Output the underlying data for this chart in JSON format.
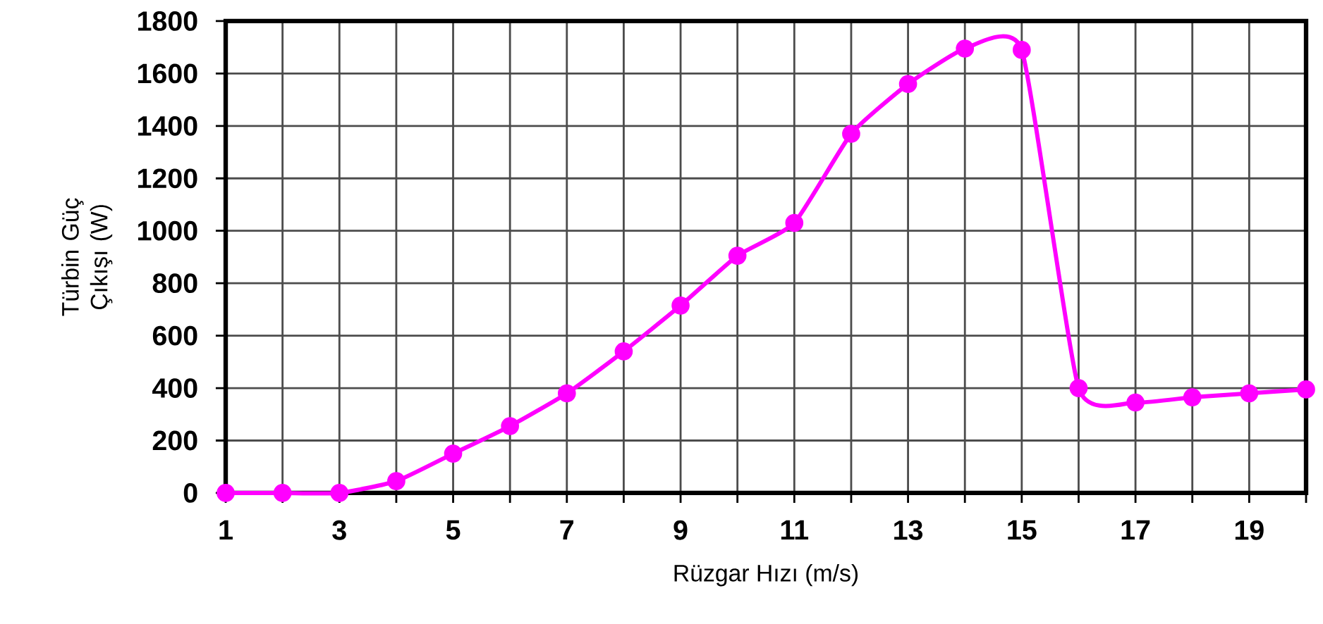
{
  "chart_data": {
    "type": "line",
    "xlabel": "Rüzgar Hızı (m/s)",
    "ylabel": "Türbin Güç Çıkışı (W)",
    "x": [
      1,
      2,
      3,
      4,
      5,
      6,
      7,
      8,
      9,
      10,
      11,
      12,
      13,
      14,
      15,
      16,
      17,
      18,
      19,
      20
    ],
    "series": [
      {
        "color": "#ff00ff",
        "values": [
          0,
          0,
          0,
          45,
          150,
          255,
          380,
          540,
          715,
          905,
          1030,
          1370,
          1560,
          1695,
          1690,
          400,
          345,
          365,
          380,
          395
        ]
      }
    ],
    "xlim": [
      1,
      20
    ],
    "ylim": [
      0,
      1800
    ],
    "xticks": [
      1,
      {
        "value": 2,
        "label": null
      },
      3,
      {
        "value": 4,
        "label": null
      },
      5,
      {
        "value": 6,
        "label": null
      },
      7,
      {
        "value": 8,
        "label": null
      },
      9,
      {
        "value": 10,
        "label": null
      },
      11,
      {
        "value": 12,
        "label": null
      },
      13,
      {
        "value": 14,
        "label": null
      },
      15,
      {
        "value": 16,
        "label": null
      },
      17,
      {
        "value": 18,
        "label": null
      },
      19,
      {
        "value": 20,
        "label": null
      }
    ],
    "yticks": [
      0,
      200,
      400,
      600,
      800,
      1000,
      1200,
      1400,
      1600,
      1800
    ],
    "grid": true,
    "marker": "circle",
    "line_style": "solid"
  }
}
